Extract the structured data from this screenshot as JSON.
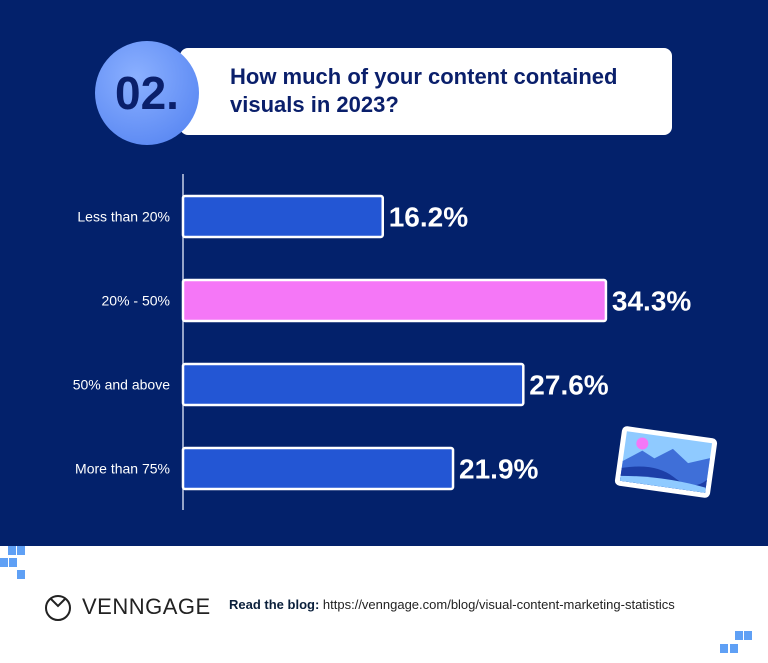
{
  "header": {
    "number": "02.",
    "title": "How much of your content contained visuals in 2023?"
  },
  "chart_data": {
    "type": "bar",
    "orientation": "horizontal",
    "categories": [
      "Less than 20%",
      "20% - 50%",
      "50% and above",
      "More than 75%"
    ],
    "values": [
      16.2,
      34.3,
      27.6,
      21.9
    ],
    "value_labels": [
      "16.2%",
      "34.3%",
      "27.6%",
      "21.9%"
    ],
    "colors": [
      "#2356d4",
      "#f577f7",
      "#2356d4",
      "#2356d4"
    ],
    "grid": false
  },
  "footer": {
    "brand": "VENNGAGE",
    "blog_label": "Read the blog:",
    "blog_url": "https://venngage.com/blog/visual-content-marketing-statistics"
  },
  "icons": {
    "illustration": "picture-landscape-icon",
    "logo": "venngage-logo-icon"
  }
}
